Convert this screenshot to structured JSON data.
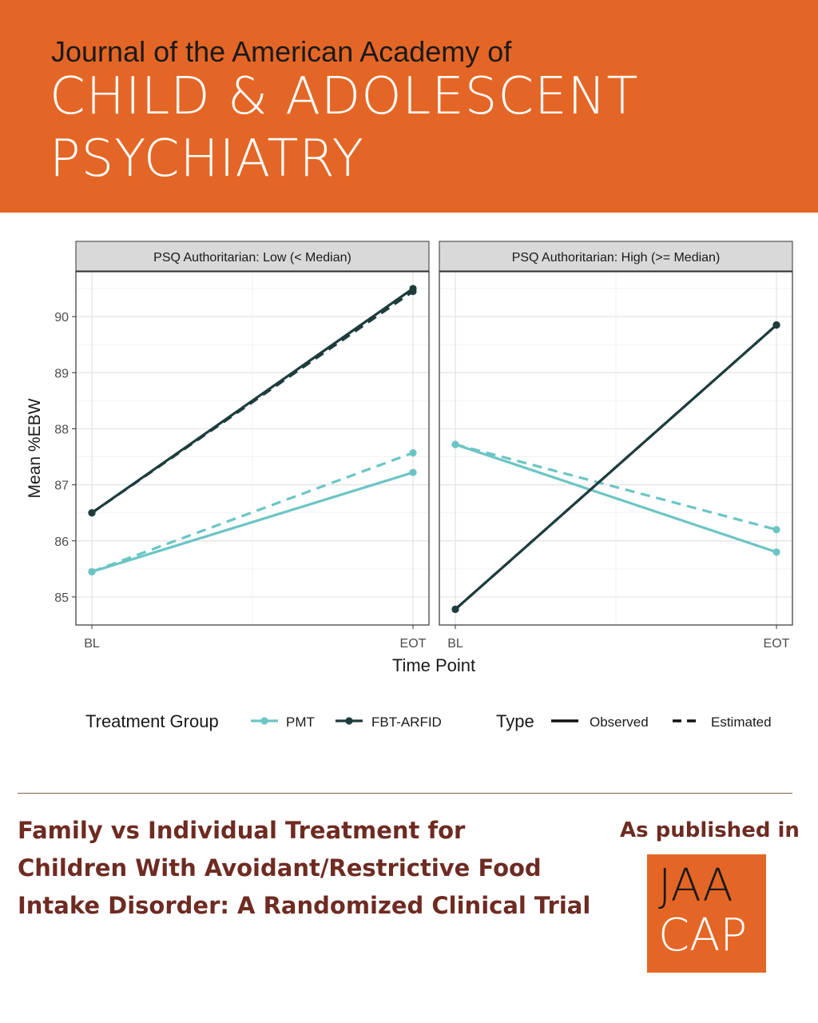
{
  "header": {
    "journal_line": "Journal of the American Academy of",
    "title_line1": "CHILD & ADOLESCENT",
    "title_line2": "PSYCHIATRY"
  },
  "colors": {
    "banner": "#e46626",
    "pmt": "#6cc5c5",
    "fbt_arfid": "#1e3c3c",
    "article_title": "#6e2b22"
  },
  "chart_data": {
    "type": "line",
    "ylabel": "Mean %EBW",
    "xlabel": "Time Point",
    "categories": [
      "BL",
      "EOT"
    ],
    "ylim": [
      84.5,
      90.8
    ],
    "yticks": [
      "85",
      "86",
      "87",
      "88",
      "89",
      "90"
    ],
    "grid": true,
    "legend_position": "bottom",
    "legend": {
      "group_title": "Treatment Group",
      "group_items": [
        "PMT",
        "FBT-ARFID"
      ],
      "type_title": "Type",
      "type_items": [
        "Observed",
        "Estimated"
      ]
    },
    "panels": [
      {
        "title": "PSQ Authoritarian: Low (< Median)",
        "series": [
          {
            "name": "PMT",
            "type": "Observed",
            "values": [
              85.45,
              87.22
            ]
          },
          {
            "name": "PMT",
            "type": "Estimated",
            "values": [
              85.45,
              87.57
            ]
          },
          {
            "name": "FBT-ARFID",
            "type": "Observed",
            "values": [
              86.5,
              90.5
            ]
          },
          {
            "name": "FBT-ARFID",
            "type": "Estimated",
            "values": [
              86.5,
              90.45
            ]
          }
        ]
      },
      {
        "title": "PSQ Authoritarian: High (>= Median)",
        "series": [
          {
            "name": "PMT",
            "type": "Observed",
            "values": [
              87.72,
              85.8
            ]
          },
          {
            "name": "PMT",
            "type": "Estimated",
            "values": [
              87.72,
              86.2
            ]
          },
          {
            "name": "FBT-ARFID",
            "type": "Observed",
            "values": [
              84.78,
              89.85
            ]
          },
          {
            "name": "FBT-ARFID",
            "type": "Estimated",
            "values": [
              84.78,
              89.85
            ]
          }
        ]
      }
    ]
  },
  "footer": {
    "article_line1": "Family vs Individual Treatment for",
    "article_line2": "Children With Avoidant/Restrictive Food",
    "article_line3": "Intake Disorder: A Randomized Clinical Trial",
    "published_label": "As published in",
    "logo_line1": "JAA",
    "logo_line2": "CAP"
  }
}
